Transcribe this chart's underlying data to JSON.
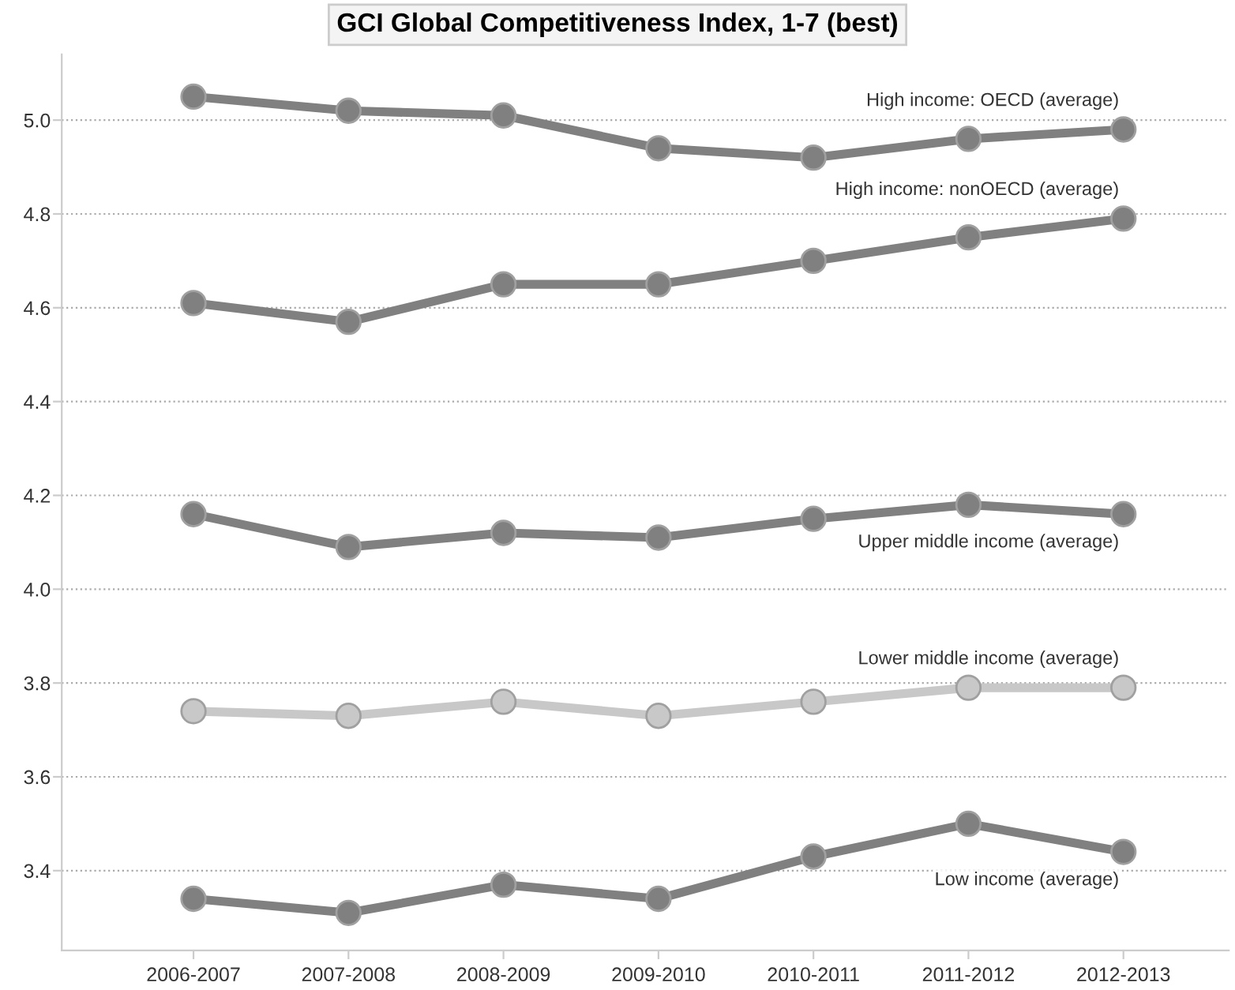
{
  "chart_data": {
    "type": "line",
    "title": "GCI Global Competitiveness Index, 1-7 (best)",
    "categories": [
      "2006-2007",
      "2007-2008",
      "2008-2009",
      "2009-2010",
      "2010-2011",
      "2011-2012",
      "2012-2013"
    ],
    "series": [
      {
        "name": "High income: OECD (average)",
        "color": "#808080",
        "values": [
          5.05,
          5.02,
          5.01,
          4.94,
          4.92,
          4.96,
          4.98
        ]
      },
      {
        "name": "High income: nonOECD (average)",
        "color": "#808080",
        "values": [
          4.61,
          4.57,
          4.65,
          4.65,
          4.7,
          4.75,
          4.79
        ]
      },
      {
        "name": "Upper middle income (average)",
        "color": "#808080",
        "values": [
          4.16,
          4.09,
          4.12,
          4.11,
          4.15,
          4.18,
          4.16
        ]
      },
      {
        "name": "Lower middle income (average)",
        "color": "#c8c8c8",
        "values": [
          3.74,
          3.73,
          3.76,
          3.73,
          3.76,
          3.79,
          3.79
        ]
      },
      {
        "name": "Low income (average)",
        "color": "#808080",
        "values": [
          3.34,
          3.31,
          3.37,
          3.34,
          3.43,
          3.5,
          3.44
        ]
      }
    ],
    "ylim": [
      3.23,
      5.14
    ],
    "yticks": [
      {
        "value": 3.4,
        "label": "3.4"
      },
      {
        "value": 3.6,
        "label": "3.6"
      },
      {
        "value": 3.8,
        "label": "3.8"
      },
      {
        "value": 4.0,
        "label": "4.0"
      },
      {
        "value": 4.2,
        "label": "4.2"
      },
      {
        "value": 4.4,
        "label": "4.4"
      },
      {
        "value": 4.6,
        "label": "4.6"
      },
      {
        "value": 4.8,
        "label": "4.8"
      },
      {
        "value": 5.0,
        "label": "5.0"
      }
    ],
    "grid": "y",
    "marker": "circle",
    "line_style": "solid",
    "legend": false
  }
}
